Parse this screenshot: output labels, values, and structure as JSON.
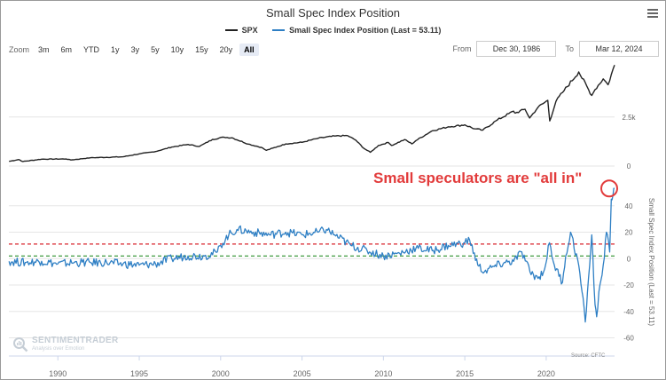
{
  "title": "Small Spec Index Position",
  "legend": [
    {
      "label": "SPX",
      "color": "#222222"
    },
    {
      "label": "Small Spec Index Position (Last = 53.11)",
      "color": "#2e7fc4"
    }
  ],
  "zoom": {
    "label": "Zoom",
    "buttons": [
      "3m",
      "6m",
      "YTD",
      "1y",
      "3y",
      "5y",
      "10y",
      "15y",
      "20y",
      "All"
    ],
    "selected": "All"
  },
  "range": {
    "from_label": "From",
    "from_value": "Dec 30, 1986",
    "to_label": "To",
    "to_value": "Mar 12, 2024"
  },
  "branding": {
    "name": "SENTIMENTRADER",
    "tagline": "Analysis over Emotion"
  },
  "source": "Source: CFTC",
  "annotation": {
    "text": "Small speculators are \"all in\"",
    "color": "#e23b3b"
  },
  "colors": {
    "spx": "#222222",
    "index": "#2e7fc4",
    "upper_threshold": "#d9262e",
    "lower_threshold": "#2a8f2a"
  },
  "chart_data": {
    "type": "line",
    "x_ticks": [
      "1990",
      "1995",
      "2000",
      "2005",
      "2010",
      "2015",
      "2020"
    ],
    "x_range": [
      1986.99,
      2024.2
    ],
    "panels": [
      {
        "name": "SPX",
        "y_ticks": [
          "0",
          "2.5k"
        ],
        "y_tick_values": [
          0,
          2500
        ],
        "ylim": [
          0,
          5300
        ],
        "series": [
          {
            "name": "SPX",
            "x": [
              1987.0,
              1987.6,
              1987.85,
              1989,
              1990.5,
              1990.8,
              1992,
              1994,
              1995,
              1996,
              1997,
              1998,
              1998.7,
              1999.5,
              2000.2,
              2000.7,
              2001.7,
              2002.5,
              2002.8,
              2003.5,
              2004,
              2005,
              2006,
              2007,
              2007.8,
              2008.3,
              2008.8,
              2009.2,
              2009.7,
              2010.3,
              2010.5,
              2011.3,
              2011.75,
              2012,
              2013,
              2014,
              2015,
              2015.6,
              2016.1,
              2017,
              2018,
              2018.1,
              2018.7,
              2018.98,
              2019.5,
              2020.1,
              2020.22,
              2020.6,
              2021,
              2022,
              2022.8,
              2023,
              2023.5,
              2023.8,
              2024.2
            ],
            "y": [
              240,
              330,
              230,
              350,
              360,
              310,
              420,
              470,
              620,
              740,
              970,
              1100,
              1000,
              1360,
              1470,
              1440,
              1120,
              950,
              800,
              990,
              1130,
              1210,
              1420,
              1530,
              1550,
              1320,
              900,
              700,
              1050,
              1200,
              1050,
              1350,
              1130,
              1300,
              1800,
              2000,
              2100,
              1900,
              1830,
              2350,
              2800,
              2700,
              2900,
              2450,
              3000,
              3350,
              2300,
              3300,
              3750,
              4800,
              3600,
              3900,
              4450,
              4150,
              5150
            ]
          }
        ]
      },
      {
        "name": "Small Spec Index Position",
        "y_ticks": [
          "-60",
          "-40",
          "-20",
          "0",
          "20",
          "40"
        ],
        "y_tick_values": [
          -60,
          -40,
          -20,
          0,
          20,
          40
        ],
        "ylim": [
          -65,
          60
        ],
        "series": [
          {
            "name": "Small Spec Index Position (Last = 53.11)",
            "x": [
              1987.0,
              1988,
              1989,
              1990,
              1991,
              1992,
              1993,
              1994,
              1995,
              1996,
              1997,
              1998,
              1999,
              1999.8,
              2000,
              2000.5,
              2001,
              2002,
              2003,
              2004,
              2005,
              2006,
              2006.5,
              2007,
              2008,
              2009,
              2010,
              2011,
              2012,
              2013,
              2014,
              2015,
              2015.3,
              2015.8,
              2016.2,
              2016.8,
              2017.5,
              2018,
              2018.5,
              2019,
              2019.5,
              2019.9,
              2020.2,
              2020.5,
              2021,
              2021.2,
              2021.5,
              2022,
              2022.2,
              2022.4,
              2022.6,
              2022.8,
              2023,
              2023.1,
              2023.3,
              2023.5,
              2023.7,
              2023.9,
              2024.0,
              2024.1,
              2024.2
            ],
            "y": [
              -2,
              -3,
              -2,
              -4,
              -3,
              -3,
              -3,
              -4,
              -5,
              -4,
              0,
              2,
              2,
              5,
              10,
              18,
              22,
              20,
              18,
              20,
              18,
              20,
              22,
              18,
              10,
              6,
              2,
              4,
              8,
              6,
              10,
              12,
              14,
              -5,
              -10,
              -6,
              -3,
              -2,
              5,
              -10,
              -15,
              -8,
              12,
              -5,
              -18,
              2,
              20,
              -5,
              -25,
              -48,
              -15,
              18,
              -35,
              -44,
              -20,
              -5,
              20,
              5,
              45,
              48,
              53.11
            ]
          }
        ]
      }
    ],
    "threshold_lines": [
      {
        "name": "upper",
        "y": 11,
        "style": "dashed",
        "color": "#d9262e"
      },
      {
        "name": "lower",
        "y": 2,
        "style": "dashed",
        "color": "#2a8f2a"
      }
    ],
    "y_axis_title_right": "Small Spec Index Position (Last = 53.11)",
    "grid": "horizontal"
  }
}
